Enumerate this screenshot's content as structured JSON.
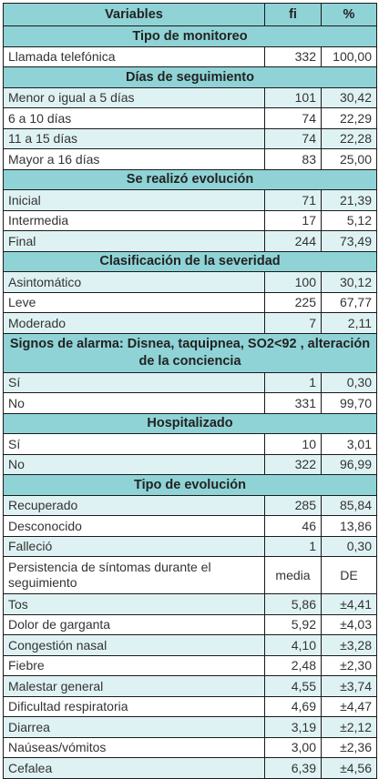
{
  "header": {
    "variables": "Variables",
    "fi": "fi",
    "pct": "%"
  },
  "sections": [
    {
      "title": "Tipo de monitoreo",
      "rows": [
        {
          "label": "Llamada telefónica",
          "fi": "332",
          "pct": "100,00",
          "shade": "white"
        }
      ]
    },
    {
      "title": "Días de seguimiento",
      "rows": [
        {
          "label": "Menor o igual a 5 días",
          "fi": "101",
          "pct": "30,42",
          "shade": "tint"
        },
        {
          "label": "6 a 10 días",
          "fi": "74",
          "pct": "22,29",
          "shade": "white"
        },
        {
          "label": "11 a 15 días",
          "fi": "74",
          "pct": "22,28",
          "shade": "tint"
        },
        {
          "label": "Mayor a 16 días",
          "fi": "83",
          "pct": "25,00",
          "shade": "white"
        }
      ]
    },
    {
      "title": "Se realizó evolución",
      "rows": [
        {
          "label": "Inicial",
          "fi": "71",
          "pct": "21,39",
          "shade": "tint"
        },
        {
          "label": "Intermedia",
          "fi": "17",
          "pct": "5,12",
          "shade": "white"
        },
        {
          "label": "Final",
          "fi": "244",
          "pct": "73,49",
          "shade": "tint"
        }
      ]
    },
    {
      "title": "Clasificación de la severidad",
      "rows": [
        {
          "label": "Asintomático",
          "fi": "100",
          "pct": "30,12",
          "shade": "tint"
        },
        {
          "label": "Leve",
          "fi": "225",
          "pct": "67,77",
          "shade": "white"
        },
        {
          "label": "Moderado",
          "fi": "7",
          "pct": "2,11",
          "shade": "tint"
        }
      ]
    },
    {
      "title": "Signos de alarma: Disnea, taquipnea, SO2<92 , alteración de la conciencia",
      "tall": true,
      "rows": [
        {
          "label": "Sí",
          "fi": "1",
          "pct": "0,30",
          "shade": "tint"
        },
        {
          "label": "No",
          "fi": "331",
          "pct": "99,70",
          "shade": "white"
        }
      ]
    },
    {
      "title": "Hospitalizado",
      "rows": [
        {
          "label": "Sí",
          "fi": "10",
          "pct": "3,01",
          "shade": "white"
        },
        {
          "label": "No",
          "fi": "322",
          "pct": "96,99",
          "shade": "tint"
        }
      ]
    },
    {
      "title": "Tipo de evolución",
      "rows": [
        {
          "label": "Recuperado",
          "fi": "285",
          "pct": "85,84",
          "shade": "tint"
        },
        {
          "label": "Desconocido",
          "fi": "46",
          "pct": "13,86",
          "shade": "white"
        },
        {
          "label": "Falleció",
          "fi": "1",
          "pct": "0,30",
          "shade": "tint"
        },
        {
          "label": "Persistencia de síntomas durante el seguimiento",
          "fi": "media",
          "pct": "DE",
          "shade": "white",
          "tall": true,
          "center": true
        },
        {
          "label": "Tos",
          "fi": "5,86",
          "pct": "±4,41",
          "shade": "tint"
        },
        {
          "label": "Dolor de garganta",
          "fi": "5,92",
          "pct": "±4,03",
          "shade": "white"
        },
        {
          "label": "Congestión nasal",
          "fi": "4,10",
          "pct": "±3,28",
          "shade": "tint"
        },
        {
          "label": "Fiebre",
          "fi": "2,48",
          "pct": "±2,30",
          "shade": "white"
        },
        {
          "label": "Malestar general",
          "fi": "4,55",
          "pct": "±3,74",
          "shade": "tint"
        },
        {
          "label": "Dificultad respiratoria",
          "fi": "4,69",
          "pct": "±4,47",
          "shade": "white"
        },
        {
          "label": "Diarrea",
          "fi": "3,19",
          "pct": "±2,12",
          "shade": "tint"
        },
        {
          "label": "Naúseas/vómitos",
          "fi": "3,00",
          "pct": "±2,36",
          "shade": "white"
        },
        {
          "label": "Cefalea",
          "fi": "6,39",
          "pct": "±4,56",
          "shade": "tint"
        }
      ]
    }
  ]
}
